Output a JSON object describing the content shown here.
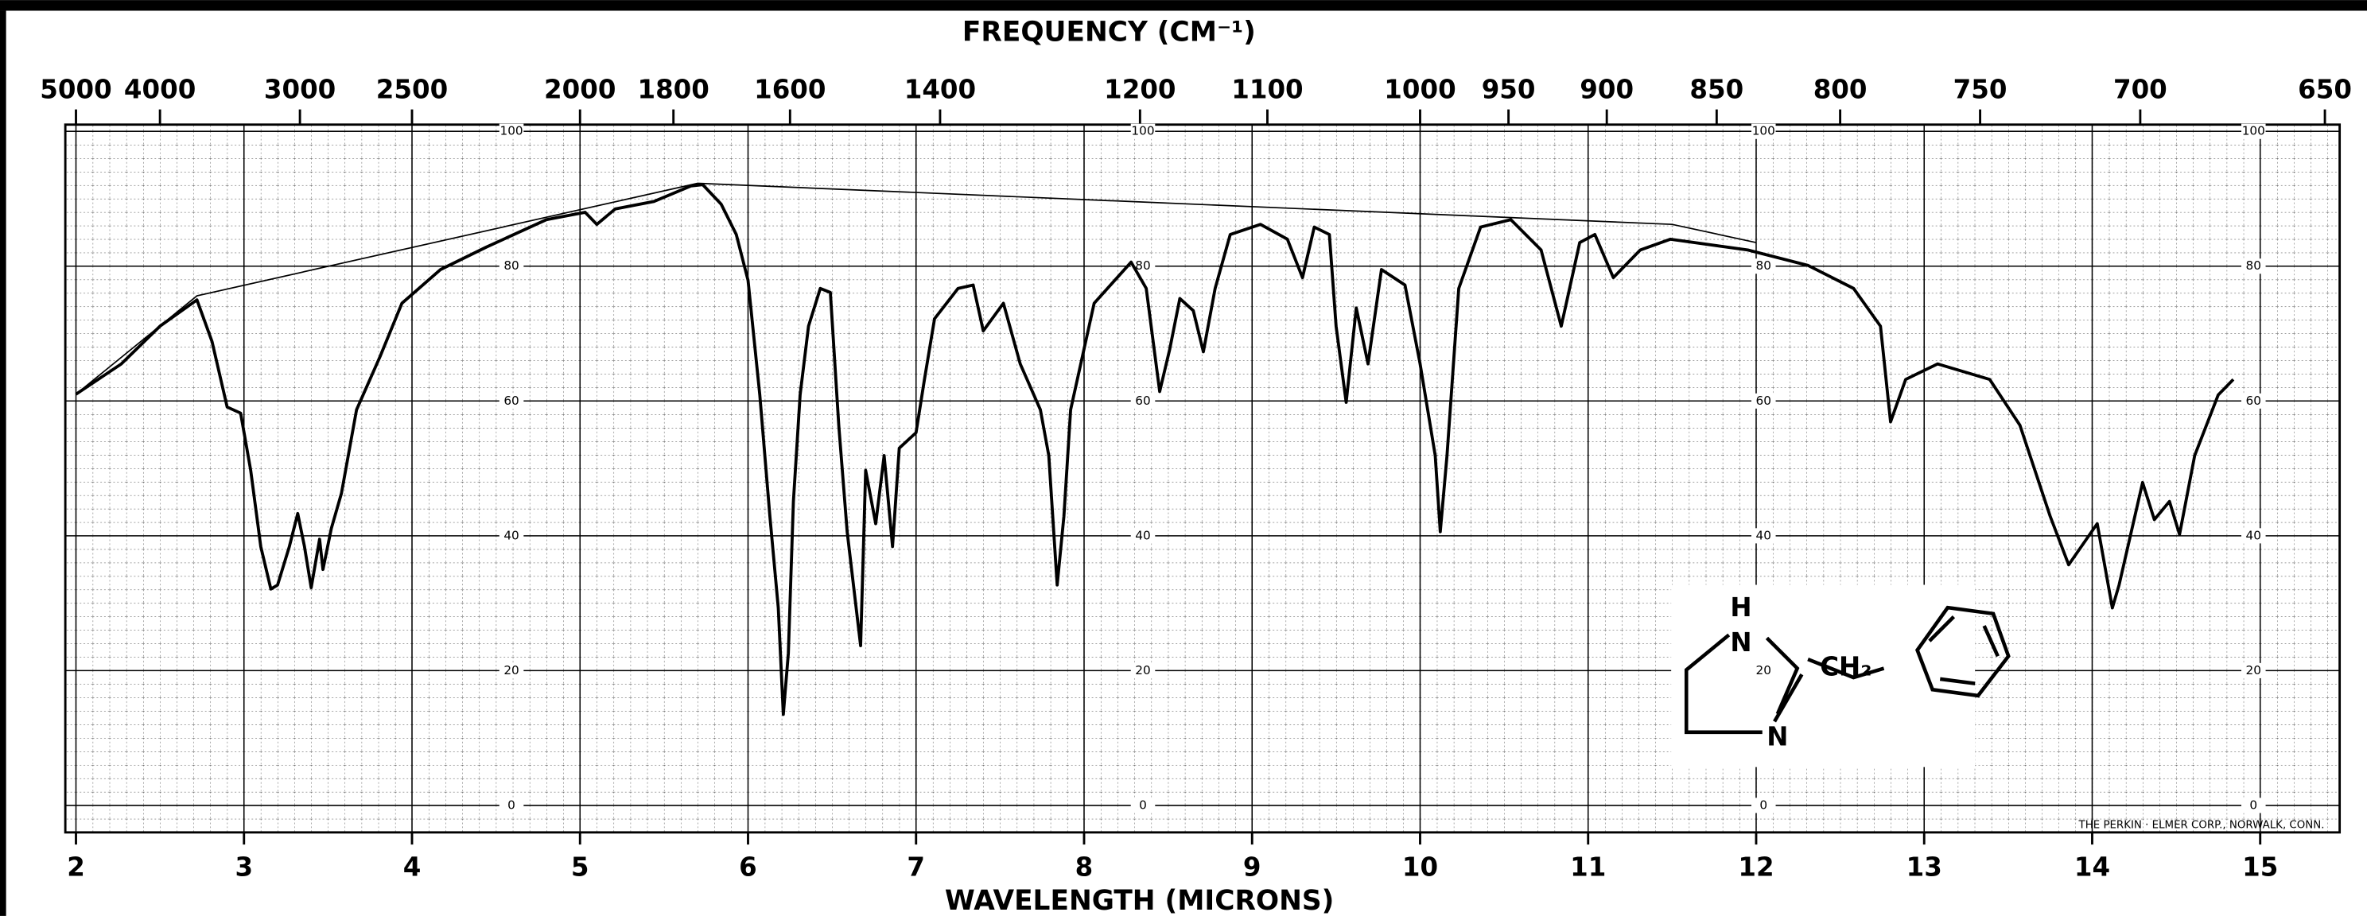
{
  "chart_data": {
    "type": "line",
    "x2label": "FREQUENCY (CM⁻¹)",
    "xlabel": "WAVELENGTH (MICRONS)",
    "annotation": "THE PERKIN · ELMER CORP., NORWALK, CONN.",
    "color": "#000000",
    "grid": true,
    "xlim": [
      2,
      15.5
    ],
    "ylim": [
      -4,
      101
    ],
    "xticks": [
      2,
      3,
      4,
      5,
      6,
      7,
      8,
      9,
      10,
      11,
      12,
      13,
      14,
      15
    ],
    "yticks": [
      0,
      20,
      40,
      60,
      80,
      100
    ],
    "x2ticks": [
      {
        "value": 2,
        "label": "5000"
      },
      {
        "value": 2.5,
        "label": "4000"
      },
      {
        "value": 3.333,
        "label": "3000"
      },
      {
        "value": 4,
        "label": "2500"
      },
      {
        "value": 5,
        "label": "2000"
      },
      {
        "value": 5.556,
        "label": "1800"
      },
      {
        "value": 6.25,
        "label": "1600"
      },
      {
        "value": 7.143,
        "label": "1400"
      },
      {
        "value": 8.333,
        "label": "1200"
      },
      {
        "value": 9.091,
        "label": "1100"
      },
      {
        "value": 10,
        "label": "1000"
      },
      {
        "value": 10.526,
        "label": "950"
      },
      {
        "value": 11.111,
        "label": "900"
      },
      {
        "value": 11.765,
        "label": "850"
      },
      {
        "value": 12.5,
        "label": "800"
      },
      {
        "value": 13.333,
        "label": "750"
      },
      {
        "value": 14.286,
        "label": "700"
      },
      {
        "value": 15.385,
        "label": "650"
      }
    ],
    "x": [
      2.0,
      2.27,
      2.5,
      2.72,
      2.81,
      2.9,
      2.98,
      3.04,
      3.1,
      3.16,
      3.2,
      3.27,
      3.32,
      3.36,
      3.4,
      3.45,
      3.47,
      3.52,
      3.58,
      3.67,
      3.81,
      3.94,
      4.17,
      4.44,
      4.8,
      5.03,
      5.1,
      5.21,
      5.44,
      5.66,
      5.73,
      5.84,
      5.93,
      6.0,
      6.07,
      6.13,
      6.18,
      6.21,
      6.24,
      6.27,
      6.31,
      6.36,
      6.43,
      6.49,
      6.54,
      6.59,
      6.67,
      6.7,
      6.76,
      6.81,
      6.86,
      6.9,
      7.0,
      7.05,
      7.11,
      7.25,
      7.34,
      7.4,
      7.52,
      7.62,
      7.74,
      7.79,
      7.84,
      7.88,
      7.92,
      8.06,
      8.28,
      8.37,
      8.45,
      8.51,
      8.57,
      8.65,
      8.71,
      8.78,
      8.87,
      9.05,
      9.21,
      9.3,
      9.37,
      9.46,
      9.5,
      9.56,
      9.62,
      9.69,
      9.77,
      9.91,
      10.0,
      10.09,
      10.12,
      10.16,
      10.23,
      10.36,
      10.54,
      10.72,
      10.84,
      10.95,
      11.04,
      11.15,
      11.31,
      11.49,
      11.95,
      12.31,
      12.58,
      12.74,
      12.8,
      12.89,
      13.08,
      13.39,
      13.57,
      13.75,
      13.86,
      14.03,
      14.12,
      14.16,
      14.3,
      14.37,
      14.46,
      14.52,
      14.61,
      14.75,
      14.84
    ],
    "values": [
      61,
      65.5,
      71.1,
      75,
      68.8,
      59.1,
      58.2,
      49.7,
      38.4,
      32.1,
      32.7,
      38.4,
      43.3,
      38.4,
      32.3,
      39.5,
      35,
      41.1,
      46.3,
      58.7,
      66.6,
      74.5,
      79.5,
      82.8,
      86.9,
      88,
      86.2,
      88.5,
      89.6,
      91.9,
      92.1,
      89.2,
      84.7,
      77.9,
      60.9,
      42.9,
      29.3,
      13.5,
      22.6,
      45.1,
      60.9,
      71.1,
      76.7,
      76.1,
      56.4,
      40.6,
      23.7,
      49.7,
      41.8,
      51.9,
      38.4,
      53,
      55.3,
      63.2,
      72.2,
      76.7,
      77.2,
      70.4,
      74.5,
      65.5,
      58.7,
      51.9,
      32.7,
      42.9,
      58.7,
      74.5,
      80.6,
      76.7,
      61.4,
      67.7,
      75.2,
      73.4,
      67.3,
      76.7,
      84.7,
      86.2,
      84,
      78.3,
      85.8,
      84.7,
      71.1,
      59.8,
      73.8,
      65.5,
      79.5,
      77.2,
      65.5,
      51.9,
      40.6,
      51.9,
      76.7,
      85.8,
      86.9,
      82.4,
      71.1,
      83.5,
      84.7,
      78.3,
      82.4,
      84,
      82.4,
      80.1,
      76.7,
      71.1,
      56.9,
      63.2,
      65.5,
      63.2,
      56.4,
      42.9,
      35.7,
      41.8,
      29.3,
      32.7,
      47.9,
      42.4,
      45.1,
      40.2,
      51.9,
      60.9,
      63.2
    ],
    "baseline": {
      "x": [
        2.0,
        2.72,
        5.7,
        11.5,
        12.0
      ],
      "values": [
        61,
        75.6,
        92.3,
        86.2,
        83.5
      ]
    }
  },
  "structure": {
    "labels": [
      "H",
      "N",
      "CH₂",
      "N"
    ]
  }
}
